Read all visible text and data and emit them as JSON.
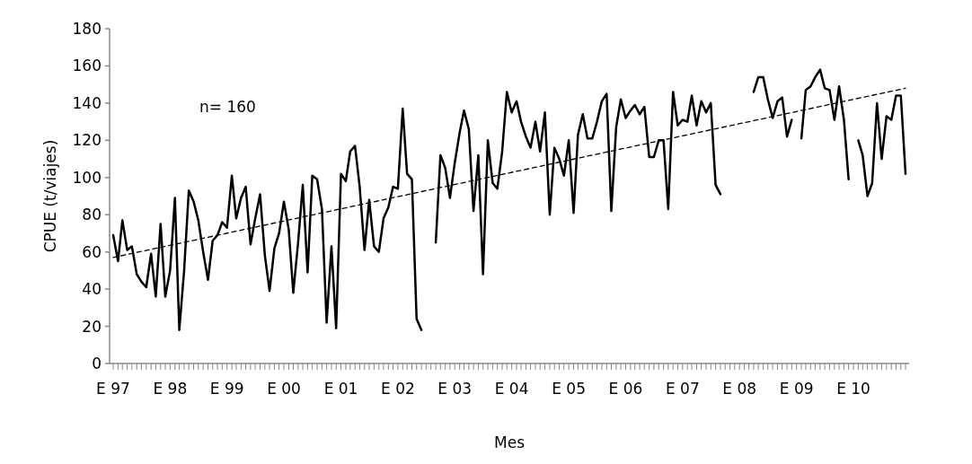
{
  "chart_data": {
    "type": "line",
    "xlabel": "Mes",
    "ylabel": "CPUE  (t/viajes)",
    "annotations": [
      "n= 160"
    ],
    "x": [
      "1997-01",
      "1997-02",
      "1997-03",
      "1997-04",
      "1997-05",
      "1997-06",
      "1997-07",
      "1997-08",
      "1997-09",
      "1997-10",
      "1997-11",
      "1997-12",
      "1998-01",
      "1998-02",
      "1998-03",
      "1998-04",
      "1998-05",
      "1998-06",
      "1998-07",
      "1998-08",
      "1998-09",
      "1998-10",
      "1998-11",
      "1998-12",
      "1999-01",
      "1999-02",
      "1999-03",
      "1999-04",
      "1999-05",
      "1999-06",
      "1999-07",
      "1999-08",
      "1999-09",
      "1999-10",
      "1999-11",
      "1999-12",
      "2000-01",
      "2000-02",
      "2000-03",
      "2000-04",
      "2000-05",
      "2000-06",
      "2000-07",
      "2000-08",
      "2000-09",
      "2000-10",
      "2000-11",
      "2000-12",
      "2001-01",
      "2001-02",
      "2001-03",
      "2001-04",
      "2001-05",
      "2001-06",
      "2001-07",
      "2001-08",
      "2001-09",
      "2001-10",
      "2001-11",
      "2001-12",
      "2002-01",
      "2002-02",
      "2002-03",
      "2002-04",
      "2002-05",
      "2002-06",
      "2002-07",
      "2002-08",
      "2002-09",
      "2002-10",
      "2002-11",
      "2002-12",
      "2003-01",
      "2003-02",
      "2003-03",
      "2003-04",
      "2003-05",
      "2003-06",
      "2003-07",
      "2003-08",
      "2003-09",
      "2003-10",
      "2003-11",
      "2003-12",
      "2004-01",
      "2004-02",
      "2004-03",
      "2004-04",
      "2004-05",
      "2004-06",
      "2004-07",
      "2004-08",
      "2004-09",
      "2004-10",
      "2004-11",
      "2004-12",
      "2005-01",
      "2005-02",
      "2005-03",
      "2005-04",
      "2005-05",
      "2005-06",
      "2005-07",
      "2005-08",
      "2005-09",
      "2005-10",
      "2005-11",
      "2005-12",
      "2006-01",
      "2006-02",
      "2006-03",
      "2006-04",
      "2006-05",
      "2006-06",
      "2006-07",
      "2006-08",
      "2006-09",
      "2006-10",
      "2006-11",
      "2006-12",
      "2007-01",
      "2007-02",
      "2007-03",
      "2007-04",
      "2007-05",
      "2007-06",
      "2007-07",
      "2007-08",
      "2007-09",
      "2007-10",
      "2007-11",
      "2007-12",
      "2008-01",
      "2008-02",
      "2008-03",
      "2008-04",
      "2008-05",
      "2008-06",
      "2008-07",
      "2008-08",
      "2008-09",
      "2008-10",
      "2008-11",
      "2008-12",
      "2009-01",
      "2009-02",
      "2009-03",
      "2009-04",
      "2009-05",
      "2009-06",
      "2009-07",
      "2009-08",
      "2009-09",
      "2009-10",
      "2009-11",
      "2009-12",
      "2010-01",
      "2010-02",
      "2010-03",
      "2010-04",
      "2010-05",
      "2010-06",
      "2010-07",
      "2010-08",
      "2010-09",
      "2010-10",
      "2010-11",
      "2010-12"
    ],
    "series": [
      {
        "color": "#000000",
        "line_style": "solid",
        "values": [
          69,
          55,
          77,
          61,
          63,
          48,
          44,
          41,
          59,
          36,
          75,
          36,
          50,
          89,
          18,
          50,
          93,
          87,
          77,
          60,
          45,
          66,
          69,
          76,
          73,
          101,
          78,
          89,
          95,
          64,
          78,
          91,
          58,
          39,
          62,
          70,
          87,
          72,
          38,
          65,
          96,
          49,
          101,
          99,
          83,
          22,
          63,
          19,
          102,
          98,
          114,
          117,
          95,
          61,
          88,
          63,
          60,
          78,
          84,
          95,
          94,
          137,
          102,
          99,
          24,
          18,
          null,
          null,
          65,
          112,
          105,
          89,
          108,
          124,
          136,
          126,
          82,
          112,
          48,
          120,
          97,
          94,
          114,
          146,
          135,
          141,
          130,
          122,
          116,
          130,
          114,
          135,
          80,
          116,
          110,
          101,
          120,
          81,
          123,
          134,
          121,
          121,
          130,
          141,
          145,
          82,
          127,
          142,
          132,
          136,
          139,
          134,
          138,
          111,
          111,
          120,
          120,
          83,
          146,
          128,
          131,
          130,
          144,
          128,
          141,
          135,
          140,
          96,
          91,
          null,
          null,
          null,
          null,
          null,
          null,
          146,
          154,
          154,
          142,
          132,
          141,
          143,
          122,
          131,
          null,
          121,
          147,
          149,
          154,
          158,
          148,
          147,
          131,
          149,
          131,
          99,
          null,
          120,
          112,
          90,
          97,
          140,
          110,
          133,
          131,
          144,
          144,
          102
        ]
      },
      {
        "color": "#000000",
        "line_style": "dashed",
        "x": [
          "1997-01",
          "2010-12"
        ],
        "values": [
          57,
          148
        ]
      }
    ],
    "xlim": [
      "1997-01",
      "2010-12"
    ],
    "xticks": [
      {
        "value": "1997-01",
        "label": "E 97"
      },
      {
        "value": "1998-01",
        "label": "E 98"
      },
      {
        "value": "1999-01",
        "label": "E 99"
      },
      {
        "value": "2000-01",
        "label": "E 00"
      },
      {
        "value": "2001-01",
        "label": "E 01"
      },
      {
        "value": "2002-01",
        "label": "E 02"
      },
      {
        "value": "2003-01",
        "label": "E 03"
      },
      {
        "value": "2004-01",
        "label": "E 04"
      },
      {
        "value": "2005-01",
        "label": "E 05"
      },
      {
        "value": "2006-01",
        "label": "E 06"
      },
      {
        "value": "2007-01",
        "label": "E 07"
      },
      {
        "value": "2008-01",
        "label": "E 08"
      },
      {
        "value": "2009-01",
        "label": "E 09"
      },
      {
        "value": "2010-01",
        "label": "E 10"
      }
    ],
    "ylim": [
      0,
      180
    ],
    "yticks": [
      0,
      20,
      40,
      60,
      80,
      100,
      120,
      140,
      160,
      180
    ],
    "grid": false,
    "marker": "none"
  }
}
